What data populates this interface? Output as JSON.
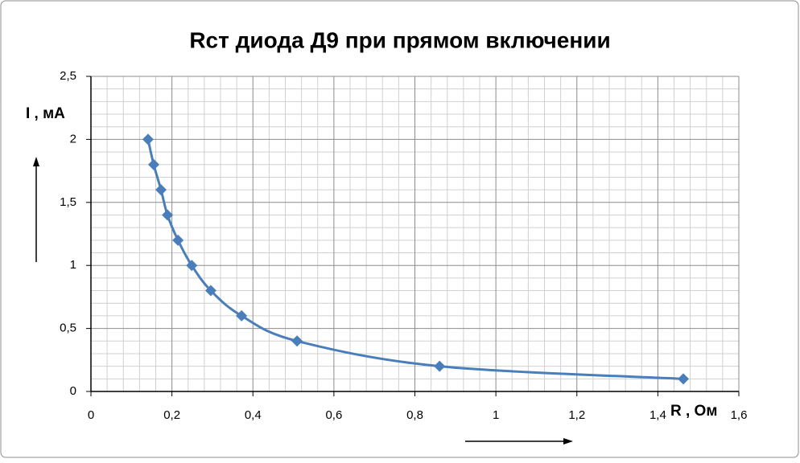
{
  "chart_data": {
    "type": "scatter",
    "title": "Rcт диода Д9 при прямом включении",
    "x_label": "R , Ом",
    "y_label": "I , мА",
    "series": [
      {
        "name": "I",
        "color": "#4a7ebb",
        "x": [
          0.141,
          0.155,
          0.173,
          0.189,
          0.215,
          0.249,
          0.296,
          0.372,
          0.509,
          0.861,
          1.463
        ],
        "values": [
          2.0,
          1.8,
          1.6,
          1.4,
          1.2,
          1.0,
          0.8,
          0.6,
          0.4,
          0.2,
          0.1
        ]
      }
    ],
    "xlim": [
      0,
      1.6
    ],
    "xticks": [
      0,
      {
        "value": 0.2,
        "label": "0,2"
      },
      {
        "value": 0.4,
        "label": "0,4"
      },
      {
        "value": 0.6,
        "label": "0,6"
      },
      {
        "value": 0.8,
        "label": "0,8"
      },
      1,
      {
        "value": 1.2,
        "label": "1,2"
      },
      {
        "value": 1.4,
        "label": "1,4"
      },
      {
        "value": 1.6,
        "label": "1,6"
      }
    ],
    "ylim": [
      0,
      2.5
    ],
    "yticks": [
      0,
      {
        "value": 0.5,
        "label": "0,5"
      },
      1,
      {
        "value": 1.5,
        "label": "1,5"
      },
      2,
      {
        "value": 2.5,
        "label": "2,5"
      }
    ],
    "grid": true,
    "minor_grid": 5,
    "smooth": true,
    "marker": "diamond"
  }
}
